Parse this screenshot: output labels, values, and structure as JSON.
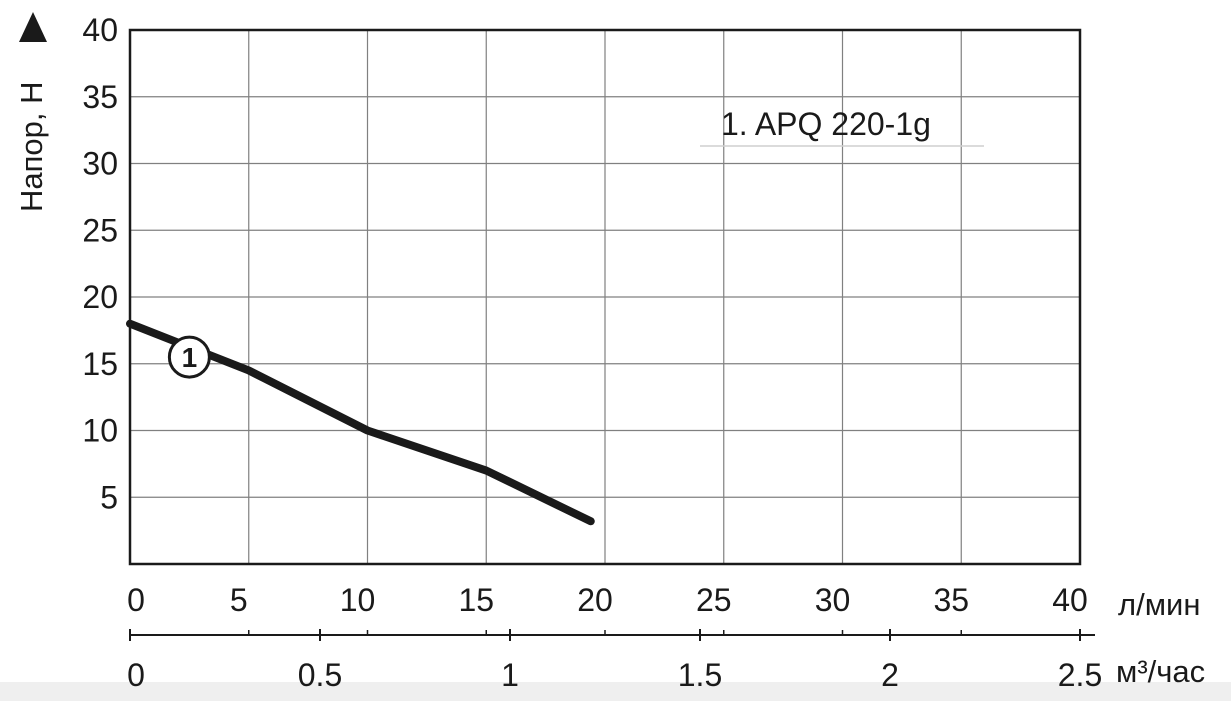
{
  "chart_data": {
    "type": "line",
    "ylabel": "Напор, Н",
    "ylim": [
      0,
      40
    ],
    "y_ticks": [
      "5",
      "10",
      "15",
      "20",
      "25",
      "30",
      "35",
      "40"
    ],
    "xlabel": "л/мин",
    "xlim": [
      0,
      40
    ],
    "x_ticks": [
      "0",
      "5",
      "10",
      "15",
      "20",
      "25",
      "30",
      "35",
      "40"
    ],
    "x2label": "м³/час",
    "x2lim": [
      0,
      2.5
    ],
    "x2_ticks": [
      "0",
      "0.5",
      "1",
      "1.5",
      "2",
      "2.5"
    ],
    "grid": true,
    "legend": {
      "text": "1. APQ 220-1g",
      "placement": "top-right"
    },
    "series": [
      {
        "marker": "1",
        "color": "#1a1a1a",
        "x": [
          0,
          5,
          10,
          15,
          19.4
        ],
        "y": [
          18,
          14.5,
          10,
          7,
          3.2
        ]
      }
    ]
  }
}
